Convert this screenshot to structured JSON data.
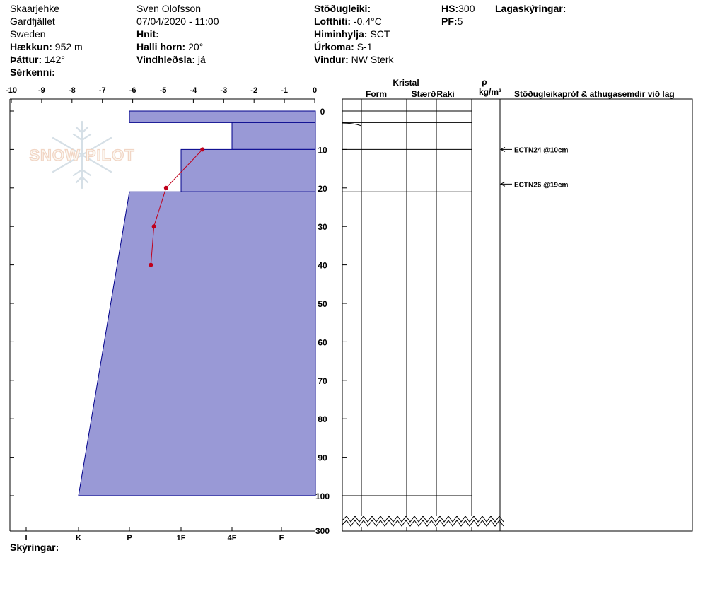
{
  "header": {
    "col1": {
      "line1": "Skaarjehke",
      "line2": "Gardfjället",
      "line3": "Sweden",
      "elevation_label": "Hækkun:",
      "elevation_value": "952 m",
      "aspect_label": "Þáttur:",
      "aspect_value": "142°",
      "features_label": "Sérkenni:"
    },
    "col2": {
      "observer": "Sven Olofsson",
      "datetime": "07/04/2020 - 11:00",
      "coords_label": "Hnit:",
      "slope_label": "Halli horn:",
      "slope_value": "20°",
      "wind_loading_label": "Vindhleðsla:",
      "wind_loading_value": "já"
    },
    "col3": {
      "stability_label": "Stöðugleiki:",
      "air_temp_label": "Lofthiti:",
      "air_temp_value": "-0.4°C",
      "sky_label": "Himinhylja:",
      "sky_value": "SCT",
      "precip_label": "Úrkoma:",
      "precip_value": "S-1",
      "wind_label": "Vindur:",
      "wind_value": "NW Sterk"
    },
    "col4": {
      "hs_label": "HS:",
      "hs_value": "300",
      "pf_label": "PF:",
      "pf_value": "5"
    },
    "col5": {
      "layer_notes_label": "Lagaskýringar:"
    }
  },
  "footer": {
    "legend_label": "Skýringar:"
  },
  "columns": {
    "kristal": "Kristal",
    "form": "Form",
    "size": "Stærð",
    "moisture": "Raki",
    "rho": "ρ",
    "density_unit": "kg/m³",
    "tests": "Stöðugleikapróf & athugasemdir við lag"
  },
  "watermark": "SNOW PILOT",
  "colors": {
    "hardness_fill": "#9999d6",
    "hardness_stroke": "#00008b",
    "temp_line": "#c0001c"
  },
  "chart_data": {
    "type": "area",
    "temp_axis": {
      "ticks": [
        -10,
        -9,
        -8,
        -7,
        -6,
        -5,
        -4,
        -3,
        -2,
        -1,
        0
      ],
      "labels": [
        "-10",
        "-9",
        "-8",
        "-7",
        "-6",
        "-5",
        "-4",
        "-3",
        "-2",
        "-1",
        "0"
      ]
    },
    "hardness_axis": {
      "ticks": [
        "I",
        "K",
        "P",
        "1F",
        "4F",
        "F"
      ],
      "positions": [
        0,
        1,
        2,
        3,
        4,
        5
      ]
    },
    "depth_axis": {
      "ticks": [
        0,
        10,
        20,
        30,
        40,
        50,
        60,
        70,
        80,
        90,
        100
      ],
      "break_label": "300",
      "range": [
        0,
        105
      ]
    },
    "hardness_profile": [
      {
        "top": 0,
        "bottom": 3,
        "hardness": 2
      },
      {
        "top": 3,
        "bottom": 10,
        "hardness": 4
      },
      {
        "top": 10,
        "bottom": 21,
        "hardness": 3
      },
      {
        "top": 21,
        "bottom": 100,
        "hardness_top": 2,
        "hardness_bottom": 1
      }
    ],
    "temperature_profile": [
      {
        "depth": 10,
        "temp": -3.7
      },
      {
        "depth": 20,
        "temp": -4.9
      },
      {
        "depth": 30,
        "temp": -5.3
      },
      {
        "depth": 40,
        "temp": -5.4
      }
    ],
    "layer_boundaries": [
      0,
      3,
      10,
      21,
      100
    ],
    "stability_tests": [
      {
        "depth": 10,
        "label": "ECTN24 @10cm"
      },
      {
        "depth": 19,
        "label": "ECTN26 @19cm"
      }
    ]
  }
}
